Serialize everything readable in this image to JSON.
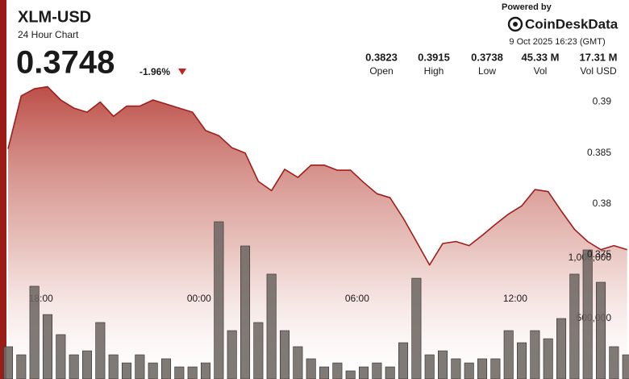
{
  "chart_data": {
    "type": "area",
    "title": "XLM-USD",
    "subtitle": "24 Hour Chart",
    "last_price": 0.3748,
    "change": {
      "value": -1.96,
      "label": "-1.96%"
    },
    "powered_by": "Powered by",
    "brand": "CoinDeskData",
    "timestamp": "9 Oct 2025 16:23 (GMT)",
    "stats": [
      {
        "value": "0.3823",
        "name": "Open"
      },
      {
        "value": "0.3915",
        "name": "High"
      },
      {
        "value": "0.3738",
        "name": "Low"
      },
      {
        "value": "45.33 M",
        "name": "Vol"
      },
      {
        "value": "17.31 M",
        "name": "Vol USD"
      }
    ],
    "x": [
      16.75,
      17.25,
      17.75,
      18.25,
      18.75,
      19.25,
      19.75,
      20.25,
      20.75,
      21.25,
      21.75,
      22.25,
      22.75,
      23.25,
      23.75,
      24.25,
      24.75,
      25.25,
      25.75,
      26.25,
      26.75,
      27.25,
      27.75,
      28.25,
      28.75,
      29.25,
      29.75,
      30.25,
      30.75,
      31.25,
      31.75,
      32.25,
      32.75,
      33.25,
      33.75,
      34.25,
      34.75,
      35.25,
      35.75,
      36.25,
      36.75,
      37.25,
      37.75,
      38.25,
      38.75,
      39.25,
      39.75,
      40.25
    ],
    "xlim": [
      16.75,
      40.32
    ],
    "xticks": [
      {
        "value": 18,
        "label": "18:00"
      },
      {
        "value": 24,
        "label": "00:00"
      },
      {
        "value": 30,
        "label": "06:00"
      },
      {
        "value": 36,
        "label": "12:00"
      }
    ],
    "series": [
      {
        "color": "#a01e1a",
        "values": [
          0.3854,
          0.3906,
          0.3913,
          0.3915,
          0.3902,
          0.3894,
          0.389,
          0.39,
          0.3886,
          0.3896,
          0.3896,
          0.3902,
          0.3898,
          0.3894,
          0.389,
          0.3872,
          0.3867,
          0.3855,
          0.385,
          0.3822,
          0.3813,
          0.3834,
          0.3826,
          0.3838,
          0.3838,
          0.3833,
          0.3833,
          0.3821,
          0.381,
          0.3806,
          0.3786,
          0.3763,
          0.374,
          0.3761,
          0.3763,
          0.3759,
          0.3769,
          0.378,
          0.379,
          0.3798,
          0.3814,
          0.3812,
          0.3793,
          0.3775,
          0.3763,
          0.3755,
          0.3759,
          0.3755
        ]
      }
    ],
    "ylim": [
      0.3628,
      0.3921
    ],
    "yticks": [
      0.375,
      0.38,
      0.385,
      0.39
    ],
    "volume": {
      "color": "#6e6863",
      "values": [
        267000,
        200000,
        767000,
        533000,
        367000,
        200000,
        233000,
        467000,
        200000,
        133000,
        200000,
        133000,
        167000,
        100000,
        100000,
        133000,
        1300000,
        400000,
        1100000,
        467000,
        867000,
        400000,
        267000,
        167000,
        100000,
        133000,
        67000,
        100000,
        133000,
        100000,
        300000,
        833000,
        200000,
        233000,
        167000,
        133000,
        167000,
        167000,
        400000,
        300000,
        400000,
        333000,
        500000,
        867000,
        1067000,
        800000,
        267000,
        200000
      ],
      "ylim": [
        0,
        2466667
      ],
      "yticks": [
        {
          "value": 500000,
          "label": "500,000"
        },
        {
          "value": 1000000,
          "label": "1,000,000"
        }
      ]
    }
  }
}
